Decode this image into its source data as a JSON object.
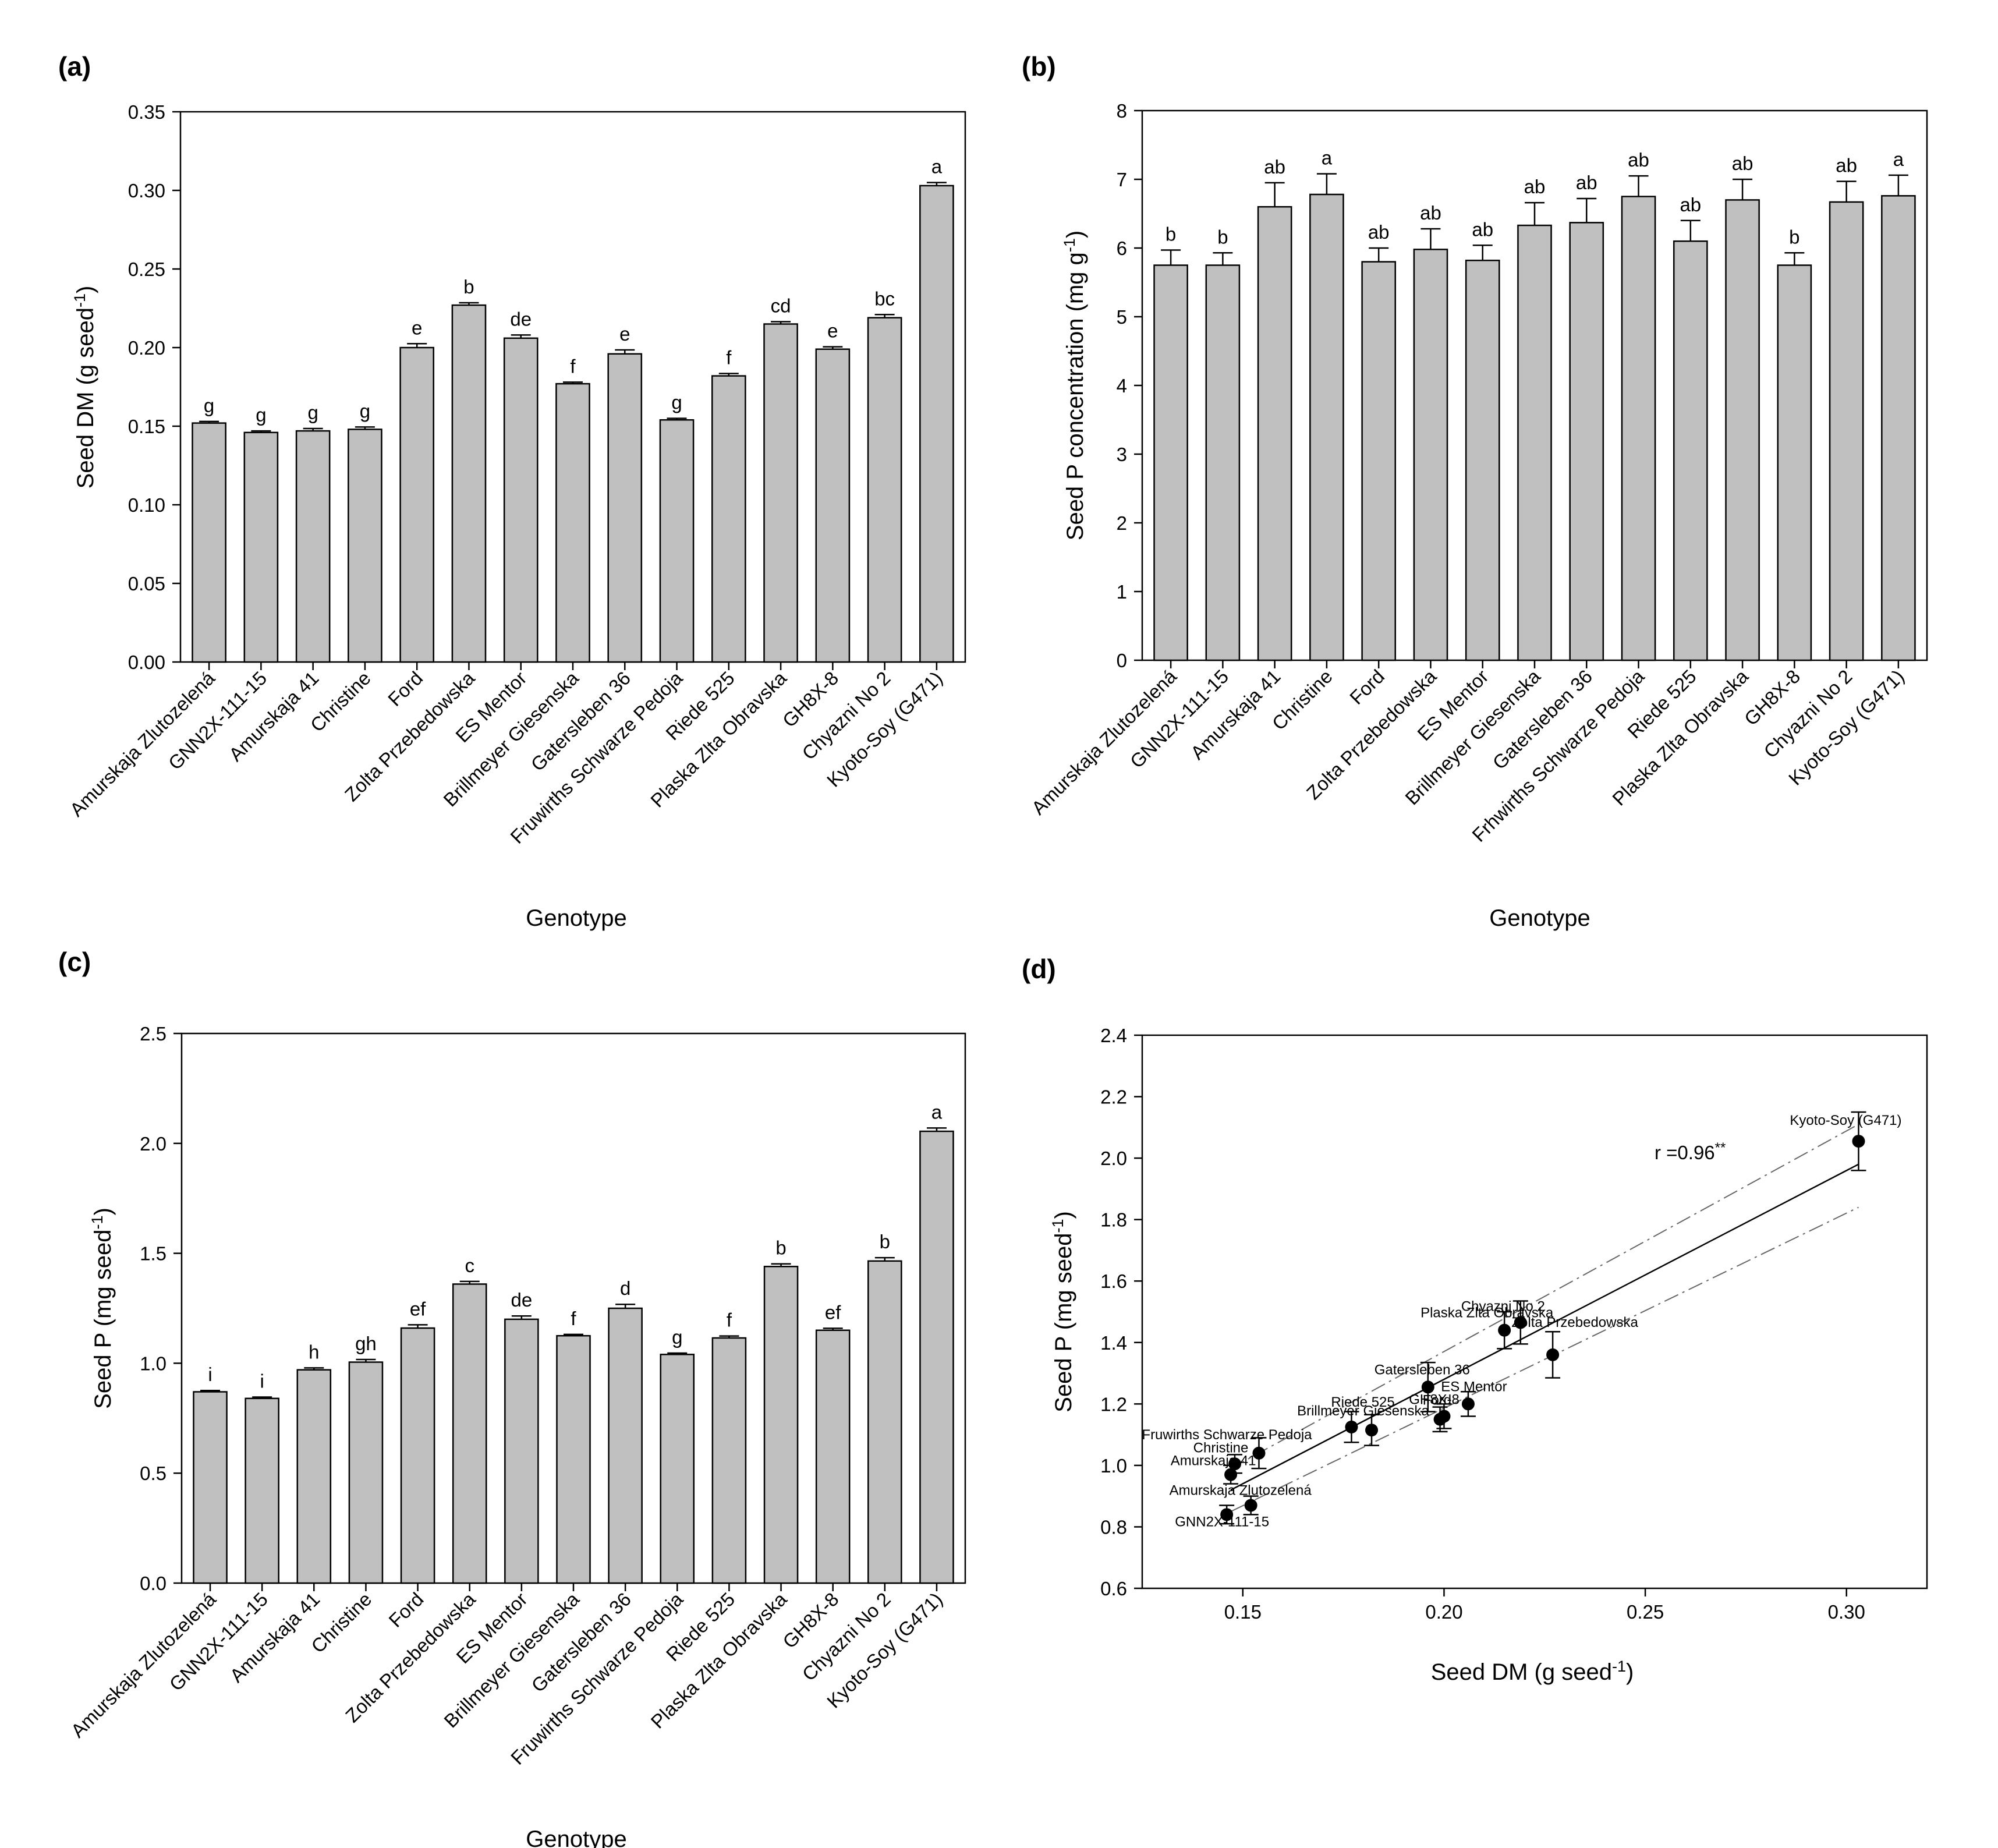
{
  "figure": {
    "panels": [
      "(a)",
      "(b)",
      "(c)",
      "(d)"
    ]
  },
  "chart_data": [
    {
      "id": "a",
      "panel_label": "(a)",
      "type": "bar",
      "xlabel": "Genotype",
      "ylabel": "Seed DM (g seed⁻¹)",
      "ylim": [
        0,
        0.35
      ],
      "yticks": [
        "0.00",
        "0.05",
        "0.10",
        "0.15",
        "0.20",
        "0.25",
        "0.30",
        "0.35"
      ],
      "categories": [
        "Amurskaja Zlutozelená",
        "GNN2X-111-15",
        "Amurskaja 41",
        "Christine",
        "Ford",
        "Zolta Przebedowska",
        "ES Mentor",
        "Brillmeyer Giesenska",
        "Gatersleben 36",
        "Fruwirths Schwarze Pedoja",
        "Riede 525",
        "Plaska Zlta Obravska",
        "GH8X-8",
        "Chyazni No 2",
        "Kyoto-Soy (G471)"
      ],
      "values": [
        0.152,
        0.146,
        0.147,
        0.148,
        0.2,
        0.227,
        0.206,
        0.177,
        0.196,
        0.154,
        0.182,
        0.215,
        0.199,
        0.219,
        0.303
      ],
      "errors": [
        0.001,
        0.001,
        0.0015,
        0.0015,
        0.0025,
        0.0015,
        0.002,
        0.001,
        0.0025,
        0.001,
        0.0015,
        0.0015,
        0.0015,
        0.002,
        0.002
      ],
      "letters": [
        "g",
        "g",
        "g",
        "g",
        "e",
        "b",
        "de",
        "f",
        "e",
        "g",
        "f",
        "cd",
        "e",
        "bc",
        "a"
      ]
    },
    {
      "id": "b",
      "panel_label": "(b)",
      "type": "bar",
      "xlabel": "Genotype",
      "ylabel": "Seed P concentration (mg g⁻¹)",
      "ylim": [
        0,
        8
      ],
      "yticks": [
        "0",
        "1",
        "2",
        "3",
        "4",
        "5",
        "6",
        "7",
        "8"
      ],
      "categories": [
        "Amurskaja Zlutozelená",
        "GNN2X-111-15",
        "Amurskaja 41",
        "Christine",
        "Ford",
        "Zolta Przebedowska",
        "ES Mentor",
        "Brillmeyer Giesenska",
        "Gatersleben 36",
        "Frhwirths Schwarze Pedoja",
        "Riede 525",
        "Plaska Zlta Obravska",
        "GH8X-8",
        "Chyazni No 2",
        "Kyoto-Soy (G471)"
      ],
      "values": [
        5.75,
        5.75,
        6.6,
        6.78,
        5.8,
        5.98,
        5.82,
        6.33,
        6.37,
        6.75,
        6.1,
        6.7,
        5.75,
        6.67,
        6.76
      ],
      "errors": [
        0.22,
        0.18,
        0.35,
        0.3,
        0.2,
        0.3,
        0.22,
        0.33,
        0.35,
        0.3,
        0.3,
        0.3,
        0.18,
        0.3,
        0.3
      ],
      "letters": [
        "b",
        "b",
        "ab",
        "a",
        "ab",
        "ab",
        "ab",
        "ab",
        "ab",
        "ab",
        "ab",
        "ab",
        "b",
        "ab",
        "a"
      ]
    },
    {
      "id": "c",
      "panel_label": "(c)",
      "type": "bar",
      "xlabel": "Genotype",
      "ylabel": "Seed P  (mg seed⁻¹)",
      "ylim": [
        0,
        2.5
      ],
      "yticks": [
        "0.0",
        "0.5",
        "1.0",
        "1.5",
        "2.0",
        "2.5"
      ],
      "categories": [
        "Amurskaja Zlutozelená",
        "GNN2X-111-15",
        "Amurskaja 41",
        "Christine",
        "Ford",
        "Zolta Przebedowska",
        "ES Mentor",
        "Brillmeyer Giesenska",
        "Gatersleben 36",
        "Fruwirths Schwarze Pedoja",
        "Riede 525",
        "Plaska Zlta Obravska",
        "GH8X-8",
        "Chyazni No 2",
        "Kyoto-Soy (G471)"
      ],
      "values": [
        0.87,
        0.84,
        0.97,
        1.005,
        1.16,
        1.36,
        1.2,
        1.125,
        1.25,
        1.04,
        1.115,
        1.44,
        1.15,
        1.465,
        2.055
      ],
      "errors": [
        0.006,
        0.006,
        0.009,
        0.012,
        0.015,
        0.012,
        0.015,
        0.006,
        0.018,
        0.006,
        0.009,
        0.012,
        0.009,
        0.015,
        0.015
      ],
      "letters": [
        "i",
        "i",
        "h",
        "gh",
        "ef",
        "c",
        "de",
        "f",
        "d",
        "g",
        "f",
        "b",
        "ef",
        "b",
        "a"
      ]
    },
    {
      "id": "d",
      "panel_label": "(d)",
      "type": "scatter",
      "xlabel": "Seed DM (g seed⁻¹)",
      "ylabel": "Seed P  (mg seed⁻¹)",
      "xlim": [
        0.125,
        0.32
      ],
      "ylim": [
        0.6,
        2.4
      ],
      "xticks": [
        "0.15",
        "0.20",
        "0.25",
        "0.30"
      ],
      "yticks": [
        "0.6",
        "0.8",
        "1.0",
        "1.2",
        "1.4",
        "1.6",
        "1.8",
        "2.0",
        "2.2",
        "2.4"
      ],
      "annotation": "r =0.96**",
      "regression": {
        "x": [
          0.147,
          0.303
        ],
        "y": [
          0.92,
          1.98
        ]
      },
      "ci_upper": {
        "x": [
          0.147,
          0.303
        ],
        "y": [
          0.99,
          2.11
        ]
      },
      "ci_lower": {
        "x": [
          0.147,
          0.303
        ],
        "y": [
          0.85,
          1.84
        ]
      },
      "points": [
        {
          "label": "Amurskaja Zlutozelená",
          "x": 0.152,
          "y": 0.87,
          "err": 0.03
        },
        {
          "label": "GNN2X-111-15",
          "x": 0.146,
          "y": 0.84,
          "err": 0.03
        },
        {
          "label": "Amurskaja 41",
          "x": 0.147,
          "y": 0.97,
          "err": 0.03
        },
        {
          "label": "Christine",
          "x": 0.148,
          "y": 1.005,
          "err": 0.03
        },
        {
          "label": "Ford",
          "x": 0.2,
          "y": 1.16,
          "err": 0.04
        },
        {
          "label": "Zolta Przebedowska",
          "x": 0.227,
          "y": 1.36,
          "err": 0.075
        },
        {
          "label": "ES Mentor",
          "x": 0.206,
          "y": 1.2,
          "err": 0.04
        },
        {
          "label": "Brillmeyer Giesenska",
          "x": 0.177,
          "y": 1.125,
          "err": 0.05
        },
        {
          "label": "Gatersleben 36",
          "x": 0.196,
          "y": 1.255,
          "err": 0.08
        },
        {
          "label": "Fruwirths Schwarze Pedoja",
          "x": 0.154,
          "y": 1.04,
          "err": 0.05
        },
        {
          "label": "Riede 525",
          "x": 0.182,
          "y": 1.115,
          "err": 0.05
        },
        {
          "label": "Plaska Zlta Obravska",
          "x": 0.215,
          "y": 1.44,
          "err": 0.06
        },
        {
          "label": "GH8X-8",
          "x": 0.199,
          "y": 1.15,
          "err": 0.04
        },
        {
          "label": "Chyazni No 2",
          "x": 0.219,
          "y": 1.465,
          "err": 0.07
        },
        {
          "label": "Kyoto-Soy  (G471)",
          "x": 0.303,
          "y": 2.055,
          "err": 0.095
        }
      ]
    }
  ]
}
